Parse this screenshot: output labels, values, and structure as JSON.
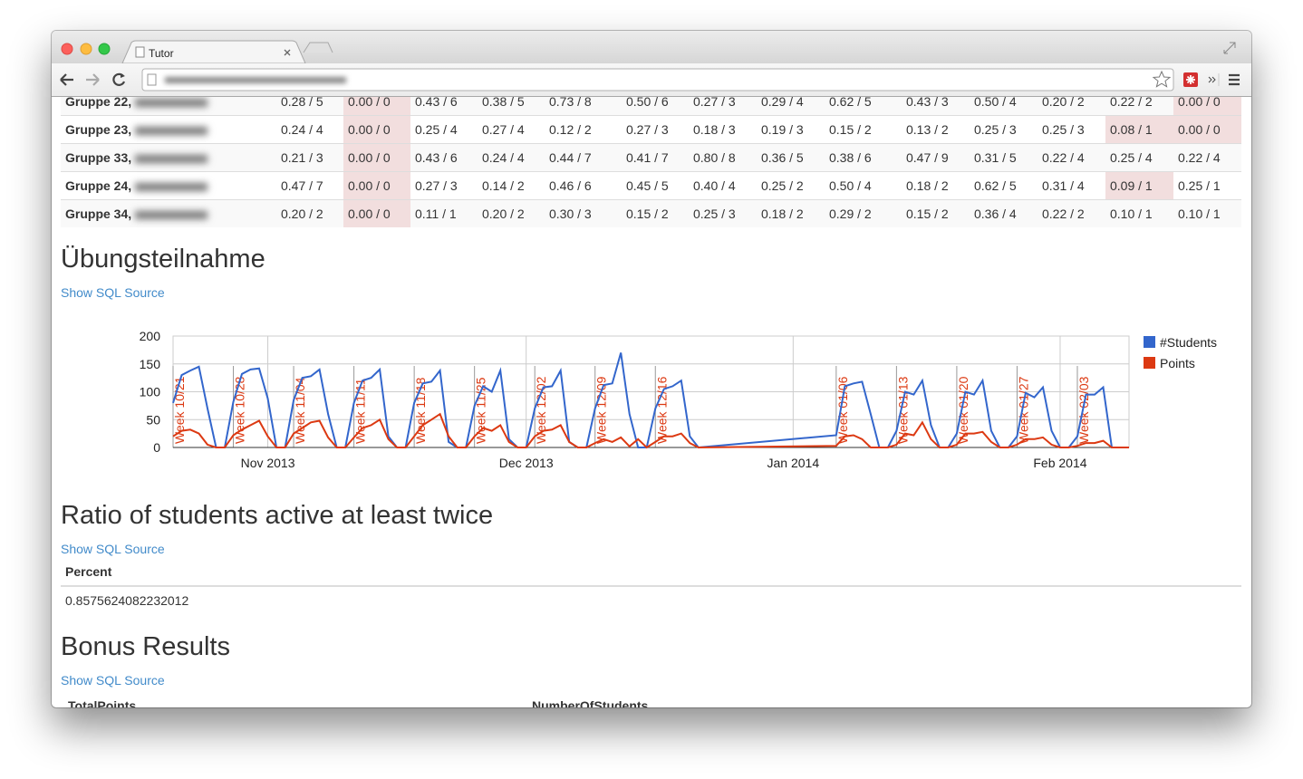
{
  "browser": {
    "tab_title": "Tutor"
  },
  "group_table": {
    "rows": [
      [
        "Gruppe 22,",
        "0.28 / 5",
        "0.00 / 0",
        "0.43 / 6",
        "0.38 / 5",
        "0.73 / 8",
        "0.50 / 6",
        "0.27 / 3",
        "0.29 / 4",
        "0.62 / 5",
        "0.43 / 3",
        "0.50 / 4",
        "0.20 / 2",
        "0.22 / 2",
        "0.00 / 0"
      ],
      [
        "Gruppe 23,",
        "0.24 / 4",
        "0.00 / 0",
        "0.25 / 4",
        "0.27 / 4",
        "0.12 / 2",
        "0.27 / 3",
        "0.18 / 3",
        "0.19 / 3",
        "0.15 / 2",
        "0.13 / 2",
        "0.25 / 3",
        "0.25 / 3",
        "0.08 / 1",
        "0.00 / 0"
      ],
      [
        "Gruppe 33,",
        "0.21 / 3",
        "0.00 / 0",
        "0.43 / 6",
        "0.24 / 4",
        "0.44 / 7",
        "0.41 / 7",
        "0.80 / 8",
        "0.36 / 5",
        "0.38 / 6",
        "0.47 / 9",
        "0.31 / 5",
        "0.22 / 4",
        "0.25 / 4",
        "0.22 / 4"
      ],
      [
        "Gruppe 24,",
        "0.47 / 7",
        "0.00 / 0",
        "0.27 / 3",
        "0.14 / 2",
        "0.46 / 6",
        "0.45 / 5",
        "0.40 / 4",
        "0.25 / 2",
        "0.50 / 4",
        "0.18 / 2",
        "0.62 / 5",
        "0.31 / 4",
        "0.09 / 1",
        "0.25 / 1"
      ],
      [
        "Gruppe 34,",
        "0.20 / 2",
        "0.00 / 0",
        "0.11 / 1",
        "0.20 / 2",
        "0.30 / 3",
        "0.15 / 2",
        "0.25 / 3",
        "0.18 / 2",
        "0.29 / 2",
        "0.15 / 2",
        "0.36 / 4",
        "0.22 / 2",
        "0.10 / 1",
        "0.10 / 1"
      ]
    ]
  },
  "sections": [
    {
      "heading": "Übungsteilnahme",
      "link": "Show SQL Source"
    },
    {
      "heading": "Ratio of students active at least twice",
      "link": "Show SQL Source",
      "table": {
        "header": [
          "Percent"
        ],
        "rows": [
          [
            "0.8575624082232012"
          ]
        ]
      }
    },
    {
      "heading": "Bonus Results",
      "link": "Show SQL Source",
      "table": {
        "header": [
          "TotalPoints",
          "NumberOfStudents"
        ]
      }
    }
  ],
  "chart_data": {
    "type": "line",
    "x": [
      "2013-10-21",
      "2013-10-22",
      "2013-10-23",
      "2013-10-24",
      "2013-10-25",
      "2013-10-26",
      "2013-10-27",
      "2013-10-28",
      "2013-10-29",
      "2013-10-30",
      "2013-10-31",
      "2013-11-01",
      "2013-11-02",
      "2013-11-03",
      "2013-11-04",
      "2013-11-05",
      "2013-11-06",
      "2013-11-07",
      "2013-11-08",
      "2013-11-09",
      "2013-11-10",
      "2013-11-11",
      "2013-11-12",
      "2013-11-13",
      "2013-11-14",
      "2013-11-15",
      "2013-11-16",
      "2013-11-17",
      "2013-11-18",
      "2013-11-19",
      "2013-11-20",
      "2013-11-21",
      "2013-11-22",
      "2013-11-23",
      "2013-11-24",
      "2013-11-25",
      "2013-11-26",
      "2013-11-27",
      "2013-11-28",
      "2013-11-29",
      "2013-11-30",
      "2013-12-01",
      "2013-12-02",
      "2013-12-03",
      "2013-12-04",
      "2013-12-05",
      "2013-12-06",
      "2013-12-07",
      "2013-12-08",
      "2013-12-09",
      "2013-12-10",
      "2013-12-11",
      "2013-12-12",
      "2013-12-13",
      "2013-12-14",
      "2013-12-15",
      "2013-12-16",
      "2013-12-17",
      "2013-12-18",
      "2013-12-19",
      "2013-12-20",
      "2013-12-21",
      "2014-01-06",
      "2014-01-07",
      "2014-01-08",
      "2014-01-09",
      "2014-01-10",
      "2014-01-11",
      "2014-01-12",
      "2014-01-13",
      "2014-01-14",
      "2014-01-15",
      "2014-01-16",
      "2014-01-17",
      "2014-01-18",
      "2014-01-19",
      "2014-01-20",
      "2014-01-21",
      "2014-01-22",
      "2014-01-23",
      "2014-01-24",
      "2014-01-25",
      "2014-01-26",
      "2014-01-27",
      "2014-01-28",
      "2014-01-29",
      "2014-01-30",
      "2014-01-31",
      "2014-02-01",
      "2014-02-02",
      "2014-02-03",
      "2014-02-04",
      "2014-02-05",
      "2014-02-06",
      "2014-02-07",
      "2014-02-08",
      "2014-02-09"
    ],
    "series": [
      {
        "name": "#Students",
        "color": "#3366cc",
        "values": [
          80,
          130,
          138,
          145,
          70,
          0,
          0,
          82,
          132,
          140,
          142,
          88,
          0,
          0,
          85,
          125,
          128,
          140,
          60,
          0,
          0,
          80,
          120,
          125,
          140,
          20,
          0,
          0,
          80,
          115,
          118,
          138,
          10,
          0,
          0,
          75,
          110,
          100,
          138,
          15,
          0,
          0,
          70,
          108,
          110,
          138,
          10,
          0,
          0,
          70,
          112,
          115,
          170,
          60,
          0,
          0,
          70,
          105,
          110,
          120,
          20,
          0,
          22,
          110,
          115,
          118,
          60,
          0,
          0,
          30,
          100,
          95,
          120,
          40,
          0,
          0,
          25,
          100,
          95,
          120,
          30,
          0,
          0,
          20,
          98,
          90,
          108,
          30,
          0,
          0,
          20,
          95,
          95,
          108,
          0,
          0,
          0
        ]
      },
      {
        "name": "Points",
        "color": "#dc3912",
        "values": [
          20,
          30,
          32,
          25,
          5,
          0,
          0,
          22,
          32,
          40,
          48,
          20,
          0,
          0,
          25,
          35,
          45,
          48,
          18,
          0,
          0,
          18,
          35,
          40,
          50,
          15,
          0,
          0,
          20,
          40,
          50,
          60,
          20,
          0,
          0,
          20,
          35,
          30,
          40,
          10,
          0,
          0,
          20,
          30,
          32,
          40,
          10,
          0,
          0,
          8,
          15,
          10,
          18,
          2,
          15,
          0,
          10,
          20,
          20,
          25,
          8,
          0,
          3,
          20,
          22,
          15,
          0,
          0,
          0,
          5,
          25,
          22,
          45,
          15,
          0,
          0,
          5,
          25,
          25,
          28,
          10,
          0,
          0,
          5,
          15,
          15,
          18,
          5,
          0,
          0,
          3,
          8,
          8,
          12,
          0,
          0,
          0
        ]
      }
    ],
    "xlim": [
      "2013-10-21",
      "2014-02-09"
    ],
    "xticks": [
      {
        "value": "2013-11-01",
        "label": "Nov 2013"
      },
      {
        "value": "2013-12-01",
        "label": "Dec 2013"
      },
      {
        "value": "2014-01-01",
        "label": "Jan 2014"
      },
      {
        "value": "2014-02-01",
        "label": "Feb 2014"
      }
    ],
    "ylim": [
      0,
      200
    ],
    "yticks": [
      0,
      50,
      100,
      150,
      200
    ],
    "grid": true,
    "legend": "right",
    "annotations": [
      {
        "x": "2013-10-21",
        "label": "Week 10/21"
      },
      {
        "x": "2013-10-28",
        "label": "Week 10/28"
      },
      {
        "x": "2013-11-04",
        "label": "Week 11/04"
      },
      {
        "x": "2013-11-11",
        "label": "Week 11/11"
      },
      {
        "x": "2013-11-18",
        "label": "Week 11/18"
      },
      {
        "x": "2013-11-25",
        "label": "Week 11/25"
      },
      {
        "x": "2013-12-02",
        "label": "Week 12/02"
      },
      {
        "x": "2013-12-09",
        "label": "Week 12/09"
      },
      {
        "x": "2013-12-16",
        "label": "Week 12/16"
      },
      {
        "x": "2014-01-06",
        "label": "Week 01/06"
      },
      {
        "x": "2014-01-13",
        "label": "Week 01/13"
      },
      {
        "x": "2014-01-20",
        "label": "Week 01/20"
      },
      {
        "x": "2014-01-27",
        "label": "Week 01/27"
      },
      {
        "x": "2014-02-03",
        "label": "Week 02/03"
      }
    ]
  }
}
